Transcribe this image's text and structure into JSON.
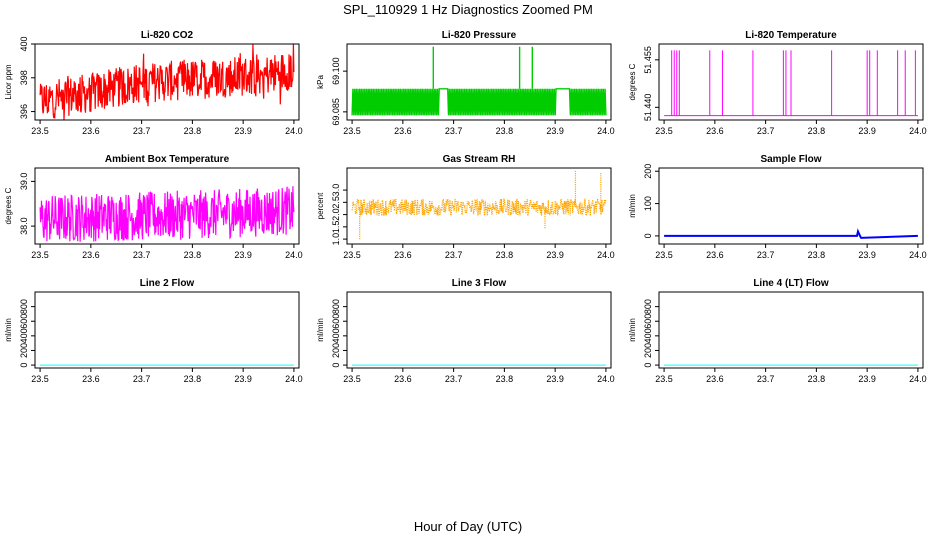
{
  "figure": {
    "title": "SPL_110929  1 Hz Diagnostics Zoomed PM",
    "xlabel": "Hour of Day (UTC)"
  },
  "colors": {
    "frame": "#000000",
    "red": "#ff0000",
    "green": "#00cc00",
    "magenta": "#ff00ff",
    "orange": "#ffa500",
    "blue": "#0000ff",
    "cyan": "#00ffff"
  },
  "chart_data": [
    {
      "type": "line",
      "title": "Li-820 CO2",
      "ylabel": "Licor ppm",
      "color_key": "red",
      "xlim": [
        23.49,
        24.01
      ],
      "ylim": [
        395.5,
        400
      ],
      "xticks": [
        "23.5",
        "23.6",
        "23.7",
        "23.8",
        "23.9",
        "24.0"
      ],
      "yticks": [
        "396",
        "398",
        "400"
      ],
      "series": [
        {
          "name": "Li-820 CO2",
          "x": [
            23.5,
            23.55,
            23.6,
            23.65,
            23.7,
            23.75,
            23.8,
            23.85,
            23.9,
            23.95,
            24.0
          ],
          "y": [
            396.6,
            396.9,
            397.1,
            397.4,
            397.7,
            397.8,
            397.9,
            398.0,
            398.1,
            398.2,
            398.5
          ]
        }
      ],
      "noise": {
        "kind": "spiky",
        "amplitude": 1.2
      }
    },
    {
      "type": "line",
      "title": "Li-820 Pressure",
      "ylabel": "kPa",
      "color_key": "green",
      "xlim": [
        23.49,
        24.01
      ],
      "ylim": [
        69.082,
        69.11
      ],
      "xticks": [
        "23.5",
        "23.6",
        "23.7",
        "23.8",
        "23.9",
        "24.0"
      ],
      "yticks": [
        "69.085",
        "69.100"
      ],
      "series": [
        {
          "name": "Li-820 Pressure",
          "x": [
            23.5,
            24.0
          ],
          "y": [
            69.0935,
            69.0935
          ]
        }
      ],
      "levels": [
        69.0837,
        69.0935
      ],
      "spikes": [
        {
          "x": 23.66,
          "y": 69.109
        },
        {
          "x": 23.83,
          "y": 69.109
        },
        {
          "x": 23.855,
          "y": 69.109
        }
      ],
      "noise": {
        "kind": "quantized"
      }
    },
    {
      "type": "line",
      "title": "Li-820 Temperature",
      "ylabel": "degrees C",
      "color_key": "magenta",
      "xlim": [
        23.49,
        24.01
      ],
      "ylim": [
        51.436,
        51.46
      ],
      "xticks": [
        "23.5",
        "23.6",
        "23.7",
        "23.8",
        "23.9",
        "24.0"
      ],
      "yticks": [
        "51.440",
        "51.455"
      ],
      "series": [
        {
          "name": "Li-820 Temperature",
          "x": [
            23.5,
            24.0
          ],
          "y": [
            51.4374,
            51.4374
          ]
        }
      ],
      "spikes": [
        {
          "x": 23.515,
          "y": 51.458
        },
        {
          "x": 23.52,
          "y": 51.458
        },
        {
          "x": 23.525,
          "y": 51.458
        },
        {
          "x": 23.53,
          "y": 51.458
        },
        {
          "x": 23.59,
          "y": 51.458
        },
        {
          "x": 23.615,
          "y": 51.458
        },
        {
          "x": 23.675,
          "y": 51.458
        },
        {
          "x": 23.735,
          "y": 51.458
        },
        {
          "x": 23.74,
          "y": 51.458
        },
        {
          "x": 23.75,
          "y": 51.458
        },
        {
          "x": 23.83,
          "y": 51.458
        },
        {
          "x": 23.9,
          "y": 51.458
        },
        {
          "x": 23.905,
          "y": 51.458
        },
        {
          "x": 23.92,
          "y": 51.458
        },
        {
          "x": 23.96,
          "y": 51.458
        },
        {
          "x": 23.975,
          "y": 51.458
        },
        {
          "x": 23.995,
          "y": 51.458
        }
      ],
      "noise": {
        "kind": "none"
      }
    },
    {
      "type": "line",
      "title": "Ambient Box Temperature",
      "ylabel": "degrees C",
      "color_key": "magenta",
      "xlim": [
        23.49,
        24.01
      ],
      "ylim": [
        37.6,
        39.3
      ],
      "xticks": [
        "23.5",
        "23.6",
        "23.7",
        "23.8",
        "23.9",
        "24.0"
      ],
      "yticks": [
        "38.0",
        "39.0"
      ],
      "series": [
        {
          "name": "Ambient Box Temperature",
          "x": [
            23.5,
            23.6,
            23.7,
            23.8,
            23.9,
            24.0
          ],
          "y": [
            38.15,
            38.2,
            38.22,
            38.25,
            38.3,
            38.35
          ]
        }
      ],
      "noise": {
        "kind": "band",
        "amplitude": 0.55
      }
    },
    {
      "type": "scatter",
      "title": "Gas Stream RH",
      "ylabel": "percent",
      "color_key": "orange",
      "xlim": [
        23.49,
        24.01
      ],
      "ylim": [
        0.8,
        3.9
      ],
      "xticks": [
        "23.5",
        "23.6",
        "23.7",
        "23.8",
        "23.9",
        "24.0"
      ],
      "yticks": [
        "1.0",
        "1.5",
        "2.0",
        "2.5",
        "3.0"
      ],
      "series": [
        {
          "name": "Gas Stream RH",
          "x": [
            23.5,
            24.0
          ],
          "y": [
            2.3,
            2.3
          ]
        }
      ],
      "noise": {
        "kind": "band",
        "amplitude": 0.35
      },
      "outliers": [
        {
          "x": 23.515,
          "y": 1.0
        },
        {
          "x": 23.94,
          "y": 3.8
        },
        {
          "x": 23.99,
          "y": 3.7
        },
        {
          "x": 23.88,
          "y": 1.4
        }
      ]
    },
    {
      "type": "line",
      "title": "Sample Flow",
      "ylabel": "ml/min",
      "color_key": "blue",
      "xlim": [
        23.49,
        24.01
      ],
      "ylim": [
        -25,
        210
      ],
      "xticks": [
        "23.5",
        "23.6",
        "23.7",
        "23.8",
        "23.9",
        "24.0"
      ],
      "yticks": [
        "0",
        "100",
        "200"
      ],
      "series": [
        {
          "name": "Sample Flow",
          "x": [
            23.5,
            23.88,
            23.882,
            23.886,
            23.888,
            24.0
          ],
          "y": [
            0,
            0,
            14,
            0,
            -6,
            0
          ]
        }
      ],
      "noise": {
        "kind": "none"
      }
    },
    {
      "type": "line",
      "title": "Line 2 Flow",
      "ylabel": "ml/min",
      "color_key": "cyan",
      "xlim": [
        23.49,
        24.01
      ],
      "ylim": [
        -40,
        1000
      ],
      "xticks": [
        "23.5",
        "23.6",
        "23.7",
        "23.8",
        "23.9",
        "24.0"
      ],
      "yticks": [
        "0",
        "200",
        "400",
        "600",
        "800"
      ],
      "series": [
        {
          "name": "Line 2 Flow",
          "x": [
            23.5,
            24.0
          ],
          "y": [
            0,
            0
          ]
        }
      ],
      "noise": {
        "kind": "none"
      }
    },
    {
      "type": "line",
      "title": "Line 3 Flow",
      "ylabel": "ml/min",
      "color_key": "cyan",
      "xlim": [
        23.49,
        24.01
      ],
      "ylim": [
        -40,
        1000
      ],
      "xticks": [
        "23.5",
        "23.6",
        "23.7",
        "23.8",
        "23.9",
        "24.0"
      ],
      "yticks": [
        "0",
        "200",
        "400",
        "600",
        "800"
      ],
      "series": [
        {
          "name": "Line 3 Flow",
          "x": [
            23.5,
            24.0
          ],
          "y": [
            0,
            0
          ]
        }
      ],
      "noise": {
        "kind": "none"
      }
    },
    {
      "type": "line",
      "title": "Line 4 (LT) Flow",
      "ylabel": "ml/min",
      "color_key": "cyan",
      "xlim": [
        23.49,
        24.01
      ],
      "ylim": [
        -40,
        1000
      ],
      "xticks": [
        "23.5",
        "23.6",
        "23.7",
        "23.8",
        "23.9",
        "24.0"
      ],
      "yticks": [
        "0",
        "200",
        "400",
        "600",
        "800"
      ],
      "series": [
        {
          "name": "Line 4 (LT) Flow",
          "x": [
            23.5,
            24.0
          ],
          "y": [
            0,
            0
          ]
        }
      ],
      "noise": {
        "kind": "none"
      }
    }
  ]
}
